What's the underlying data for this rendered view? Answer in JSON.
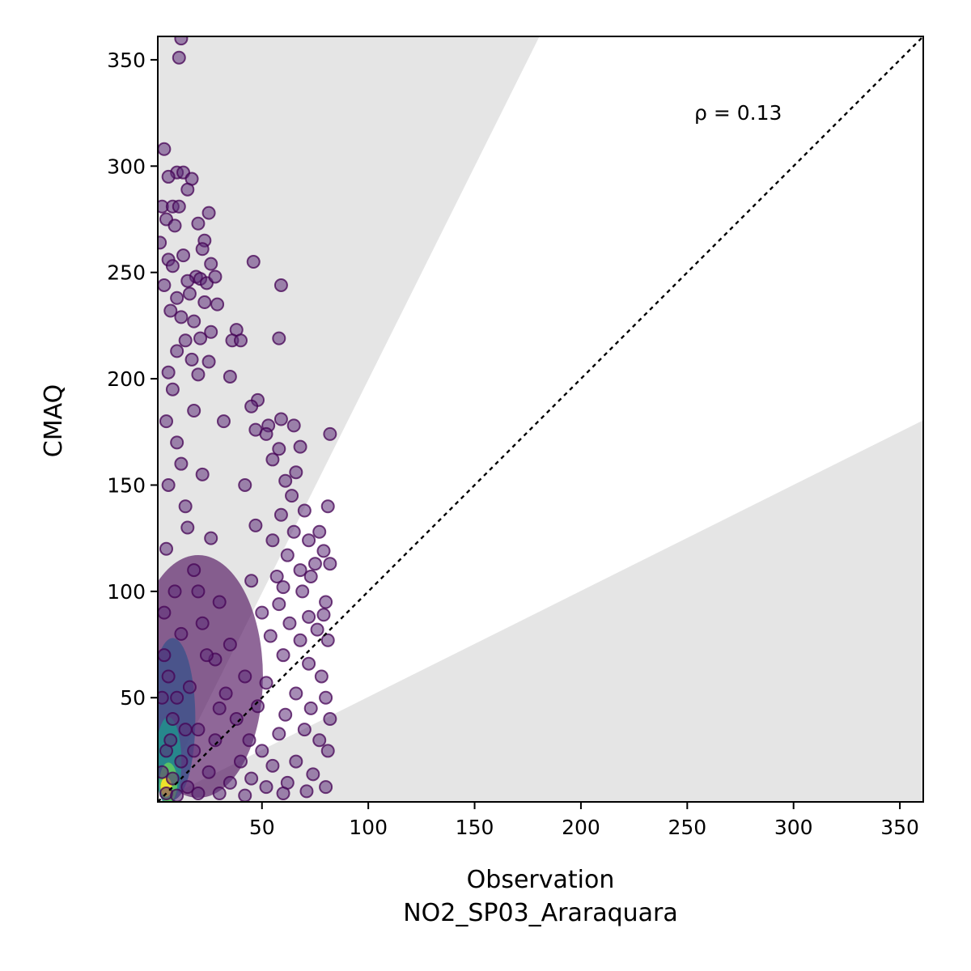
{
  "chart_data": {
    "type": "scatter",
    "title": "",
    "xlabel": "Observation",
    "xlabel_line2": "NO2_SP03_Araraquara",
    "ylabel": "CMAQ",
    "xlim": [
      1,
      361
    ],
    "ylim": [
      1,
      361
    ],
    "xticks": [
      50,
      100,
      150,
      200,
      250,
      300,
      350
    ],
    "yticks": [
      50,
      100,
      150,
      200,
      250,
      300,
      350
    ],
    "grid": false,
    "annotation": "ρ = 0.13",
    "reference_line": "1:1",
    "shaded_wedges": [
      {
        "below_slope": 0.5
      },
      {
        "above_slope": 2
      }
    ],
    "colormap": "viridis",
    "colors": {
      "low_density": "#440154",
      "mid_density": "#21918c",
      "high_density": "#fde725",
      "shade": "#e5e5e5"
    },
    "series": [
      {
        "points": [
          [
            12,
            360
          ],
          [
            11,
            351
          ],
          [
            4,
            308
          ],
          [
            10,
            297
          ],
          [
            13,
            297
          ],
          [
            17,
            294
          ],
          [
            6,
            295
          ],
          [
            15,
            289
          ],
          [
            3,
            281
          ],
          [
            8,
            281
          ],
          [
            11,
            281
          ],
          [
            25,
            278
          ],
          [
            5,
            275
          ],
          [
            9,
            272
          ],
          [
            20,
            273
          ],
          [
            23,
            265
          ],
          [
            22,
            261
          ],
          [
            2,
            264
          ],
          [
            13,
            258
          ],
          [
            6,
            256
          ],
          [
            8,
            253
          ],
          [
            26,
            254
          ],
          [
            46,
            255
          ],
          [
            19,
            248
          ],
          [
            15,
            246
          ],
          [
            21,
            247
          ],
          [
            24,
            245
          ],
          [
            28,
            248
          ],
          [
            59,
            244
          ],
          [
            4,
            244
          ],
          [
            10,
            238
          ],
          [
            16,
            240
          ],
          [
            23,
            236
          ],
          [
            29,
            235
          ],
          [
            7,
            232
          ],
          [
            12,
            229
          ],
          [
            18,
            227
          ],
          [
            26,
            222
          ],
          [
            38,
            223
          ],
          [
            14,
            218
          ],
          [
            21,
            219
          ],
          [
            36,
            218
          ],
          [
            40,
            218
          ],
          [
            58,
            219
          ],
          [
            10,
            213
          ],
          [
            17,
            209
          ],
          [
            25,
            208
          ],
          [
            6,
            203
          ],
          [
            20,
            202
          ],
          [
            35,
            201
          ],
          [
            48,
            190
          ],
          [
            45,
            187
          ],
          [
            59,
            181
          ],
          [
            32,
            180
          ],
          [
            53,
            178
          ],
          [
            65,
            178
          ],
          [
            47,
            176
          ],
          [
            82,
            174
          ],
          [
            52,
            174
          ],
          [
            68,
            168
          ],
          [
            58,
            167
          ],
          [
            55,
            162
          ],
          [
            66,
            156
          ],
          [
            61,
            152
          ],
          [
            42,
            150
          ],
          [
            64,
            145
          ],
          [
            70,
            138
          ],
          [
            81,
            140
          ],
          [
            59,
            136
          ],
          [
            47,
            131
          ],
          [
            65,
            128
          ],
          [
            77,
            128
          ],
          [
            55,
            124
          ],
          [
            72,
            124
          ],
          [
            79,
            119
          ],
          [
            62,
            117
          ],
          [
            75,
            113
          ],
          [
            82,
            113
          ],
          [
            68,
            110
          ],
          [
            57,
            107
          ],
          [
            73,
            107
          ],
          [
            45,
            105
          ],
          [
            60,
            102
          ],
          [
            69,
            100
          ],
          [
            80,
            95
          ],
          [
            58,
            94
          ],
          [
            50,
            90
          ],
          [
            72,
            88
          ],
          [
            79,
            89
          ],
          [
            63,
            85
          ],
          [
            76,
            82
          ],
          [
            54,
            79
          ],
          [
            68,
            77
          ],
          [
            81,
            77
          ],
          [
            60,
            70
          ],
          [
            72,
            66
          ],
          [
            78,
            60
          ],
          [
            52,
            57
          ],
          [
            66,
            52
          ],
          [
            80,
            50
          ],
          [
            73,
            45
          ],
          [
            61,
            42
          ],
          [
            82,
            40
          ],
          [
            70,
            35
          ],
          [
            77,
            30
          ],
          [
            81,
            25
          ],
          [
            66,
            20
          ],
          [
            74,
            14
          ],
          [
            80,
            8
          ],
          [
            71,
            6
          ],
          [
            62,
            10
          ],
          [
            55,
            18
          ],
          [
            50,
            25
          ],
          [
            44,
            30
          ],
          [
            58,
            33
          ],
          [
            38,
            40
          ],
          [
            48,
            46
          ],
          [
            33,
            52
          ],
          [
            42,
            60
          ],
          [
            28,
            68
          ],
          [
            35,
            75
          ],
          [
            22,
            85
          ],
          [
            30,
            95
          ],
          [
            18,
            110
          ],
          [
            26,
            125
          ],
          [
            14,
            140
          ],
          [
            22,
            155
          ],
          [
            10,
            170
          ],
          [
            18,
            185
          ],
          [
            8,
            195
          ],
          [
            5,
            180
          ],
          [
            12,
            160
          ],
          [
            6,
            150
          ],
          [
            15,
            130
          ],
          [
            5,
            120
          ],
          [
            9,
            100
          ],
          [
            20,
            100
          ],
          [
            4,
            90
          ],
          [
            12,
            80
          ],
          [
            24,
            70
          ],
          [
            6,
            60
          ],
          [
            16,
            55
          ],
          [
            30,
            45
          ],
          [
            8,
            40
          ],
          [
            20,
            35
          ],
          [
            40,
            20
          ],
          [
            5,
            25
          ],
          [
            12,
            20
          ],
          [
            25,
            15
          ],
          [
            35,
            10
          ],
          [
            8,
            12
          ],
          [
            15,
            8
          ],
          [
            5,
            5
          ],
          [
            10,
            4
          ],
          [
            20,
            5
          ],
          [
            3,
            15
          ],
          [
            7,
            30
          ],
          [
            3,
            50
          ],
          [
            4,
            70
          ],
          [
            10,
            50
          ],
          [
            14,
            35
          ],
          [
            18,
            25
          ],
          [
            28,
            30
          ],
          [
            45,
            12
          ],
          [
            52,
            8
          ],
          [
            60,
            5
          ],
          [
            30,
            5
          ],
          [
            42,
            4
          ]
        ]
      }
    ]
  }
}
